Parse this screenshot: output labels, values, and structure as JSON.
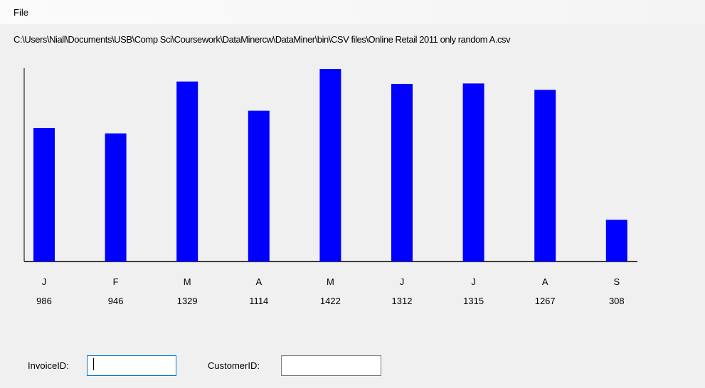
{
  "menu": {
    "file_label": "File"
  },
  "file_path": "C:\\Users\\Niall\\Documents\\USB\\Comp Sci\\Coursework\\DataMinercw\\DataMiner\\bin\\CSV files\\Online Retail 2011 only random A.csv",
  "form": {
    "invoice_label": "InvoiceID:",
    "invoice_value": "",
    "customer_label": "CustomerID:",
    "customer_value": ""
  },
  "colors": {
    "bar": "#0000ff",
    "axis": "#000000",
    "background": "#f0f0f0"
  },
  "chart_data": {
    "type": "bar",
    "categories": [
      "J",
      "F",
      "M",
      "A",
      "M",
      "J",
      "J",
      "A",
      "S"
    ],
    "values": [
      986,
      946,
      1329,
      1114,
      1422,
      1312,
      1315,
      1267,
      308
    ],
    "title": "",
    "xlabel": "",
    "ylabel": "",
    "ylim": [
      0,
      1422
    ],
    "grid": false,
    "legend": "none"
  }
}
